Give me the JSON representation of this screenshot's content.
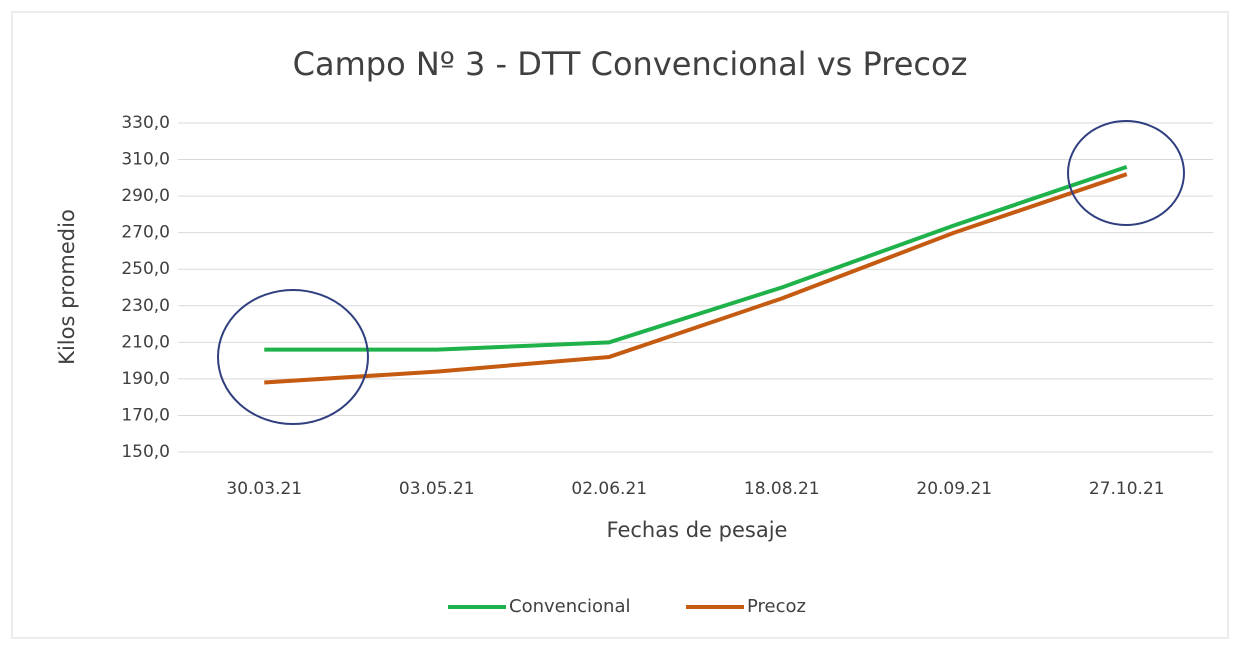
{
  "chart_data": {
    "type": "line",
    "title": "Campo Nº 3 - DTT Convencional vs Precoz",
    "x_label": "Fechas de pesaje",
    "y_label": "Kilos promedio",
    "categories": [
      "30.03.21",
      "03.05.21",
      "02.06.21",
      "18.08.21",
      "20.09.21",
      "27.10.21"
    ],
    "series": [
      {
        "name": "Convencional",
        "color": "#1fb24a",
        "values": [
          206,
          206,
          210,
          240,
          274,
          306
        ]
      },
      {
        "name": "Precoz",
        "color": "#c55a11",
        "values": [
          188,
          194,
          202,
          234,
          270,
          302
        ]
      }
    ],
    "ylim": [
      150,
      330
    ],
    "yticks": [
      {
        "value": 150,
        "label": "150,0"
      },
      {
        "value": 170,
        "label": "170,0"
      },
      {
        "value": 190,
        "label": "190,0"
      },
      {
        "value": 210,
        "label": "210,0"
      },
      {
        "value": 230,
        "label": "230,0"
      },
      {
        "value": 250,
        "label": "250,0"
      },
      {
        "value": 270,
        "label": "270,0"
      },
      {
        "value": 290,
        "label": "290,0"
      },
      {
        "value": 310,
        "label": "310,0"
      },
      {
        "value": 330,
        "label": "330,0"
      }
    ],
    "grid": true,
    "legend": "bottom"
  }
}
